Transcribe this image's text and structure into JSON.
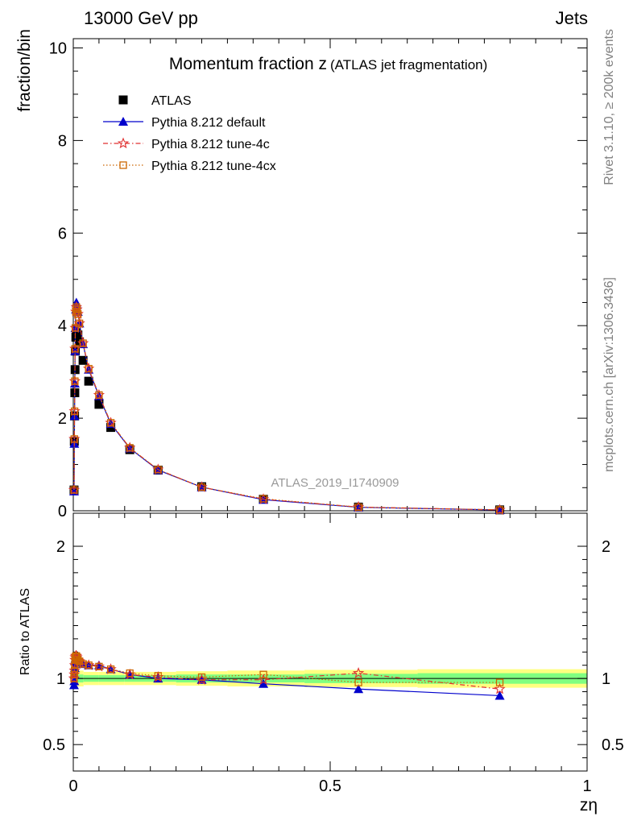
{
  "header": {
    "left": "13000 GeV pp",
    "right": "Jets"
  },
  "side_text": {
    "rivet": "Rivet 3.1.10, ≥ 200k events",
    "mcplots": "mcplots.cern.ch [arXiv:1306.3436]"
  },
  "chart_data": [
    {
      "type": "scatter",
      "panel": "main",
      "title_main": "Momentum fraction z",
      "title_sub": "(ATLAS jet fragmentation)",
      "ylabel": "fraction/bin",
      "xlabel": "zη",
      "watermark": "ATLAS_2019_I1740909",
      "xlim": [
        0,
        1
      ],
      "ylim": [
        0,
        10.2
      ],
      "yticks": [
        0,
        2,
        4,
        6,
        8,
        10
      ],
      "ytick_labels": [
        "0",
        "2",
        "4",
        "6",
        "8",
        "10"
      ],
      "legend": [
        "ATLAS",
        "Pythia 8.212 default",
        "Pythia 8.212 tune-4c",
        "Pythia 8.212 tune-4cx"
      ],
      "x": [
        0.0015,
        0.002,
        0.0025,
        0.003,
        0.0035,
        0.004,
        0.005,
        0.006,
        0.007,
        0.009,
        0.012,
        0.019,
        0.03,
        0.05,
        0.073,
        0.11,
        0.165,
        0.25,
        0.37,
        0.555,
        0.83
      ],
      "series": [
        {
          "name": "ATLAS",
          "marker": "square",
          "color": "#000000",
          "values": [
            0.45,
            1.5,
            2.05,
            2.55,
            3.05,
            3.45,
            3.75,
            3.85,
            3.8,
            3.8,
            3.65,
            3.25,
            2.8,
            2.3,
            1.8,
            1.32,
            0.88,
            0.52,
            0.25,
            0.08,
            0.02
          ]
        },
        {
          "name": "Pythia 8.212 default",
          "marker": "triangle",
          "color": "#0000cc",
          "line": "solid",
          "values": [
            0.42,
            1.45,
            2.05,
            2.75,
            3.45,
            3.95,
            4.35,
            4.5,
            4.45,
            4.3,
            4.05,
            3.6,
            3.05,
            2.48,
            1.88,
            1.35,
            0.88,
            0.51,
            0.24,
            0.075,
            0.018
          ]
        },
        {
          "name": "Pythia 8.212 tune-4c",
          "marker": "star",
          "color": "#e03030",
          "line": "dashdot",
          "values": [
            0.45,
            1.55,
            2.15,
            2.8,
            3.5,
            3.95,
            4.3,
            4.4,
            4.35,
            4.25,
            4.05,
            3.62,
            3.07,
            2.5,
            1.9,
            1.36,
            0.89,
            0.51,
            0.25,
            0.082,
            0.019
          ]
        },
        {
          "name": "Pythia 8.212 tune-4cx",
          "marker": "open-square",
          "color": "#cc6600",
          "line": "dotted",
          "values": [
            0.45,
            1.55,
            2.15,
            2.8,
            3.5,
            3.95,
            4.3,
            4.4,
            4.35,
            4.25,
            4.05,
            3.62,
            3.07,
            2.5,
            1.9,
            1.36,
            0.89,
            0.51,
            0.26,
            0.078,
            0.02
          ]
        }
      ]
    },
    {
      "type": "line",
      "panel": "ratio",
      "ylabel": "Ratio to ATLAS",
      "xlabel": "zη",
      "xlim": [
        0,
        1
      ],
      "ylim": [
        0.3,
        2.25
      ],
      "yticks": [
        0.5,
        1,
        2
      ],
      "ytick_labels": [
        "0.5",
        "1",
        "2"
      ],
      "xticks": [
        0,
        0.5,
        1
      ],
      "xtick_labels": [
        "0",
        "0.5",
        "1"
      ],
      "x": [
        0.0015,
        0.002,
        0.0025,
        0.003,
        0.0035,
        0.004,
        0.005,
        0.006,
        0.007,
        0.009,
        0.012,
        0.019,
        0.03,
        0.05,
        0.073,
        0.11,
        0.165,
        0.25,
        0.37,
        0.555,
        0.83
      ],
      "band_edges": [
        0,
        0.02,
        0.05,
        0.1,
        0.2,
        0.3,
        0.45,
        0.67,
        1.0
      ],
      "band_inner": [
        0.03,
        0.025,
        0.025,
        0.025,
        0.03,
        0.03,
        0.035,
        0.04
      ],
      "band_outer": [
        0.06,
        0.05,
        0.05,
        0.05,
        0.055,
        0.06,
        0.065,
        0.07
      ],
      "series": [
        {
          "name": "Pythia 8.212 default",
          "marker": "triangle",
          "color": "#0000cc",
          "line": "solid",
          "values": [
            0.95,
            0.98,
            1.03,
            1.08,
            1.13,
            1.15,
            1.16,
            1.17,
            1.17,
            1.14,
            1.12,
            1.11,
            1.1,
            1.1,
            1.07,
            1.03,
            1.0,
            0.99,
            0.96,
            0.92,
            0.87
          ]
        },
        {
          "name": "Pythia 8.212 tune-4c",
          "marker": "star",
          "color": "#e03030",
          "line": "dashdot",
          "values": [
            1.0,
            1.03,
            1.06,
            1.1,
            1.14,
            1.16,
            1.17,
            1.17,
            1.16,
            1.14,
            1.13,
            1.11,
            1.1,
            1.09,
            1.07,
            1.03,
            1.01,
            0.99,
            0.99,
            1.04,
            0.92
          ]
        },
        {
          "name": "Pythia 8.212 tune-4cx",
          "marker": "open-square",
          "color": "#cc6600",
          "line": "dotted",
          "values": [
            1.0,
            1.03,
            1.06,
            1.1,
            1.14,
            1.16,
            1.17,
            1.17,
            1.16,
            1.14,
            1.13,
            1.11,
            1.1,
            1.09,
            1.07,
            1.04,
            1.02,
            1.01,
            1.03,
            0.97,
            0.97
          ]
        }
      ]
    }
  ]
}
